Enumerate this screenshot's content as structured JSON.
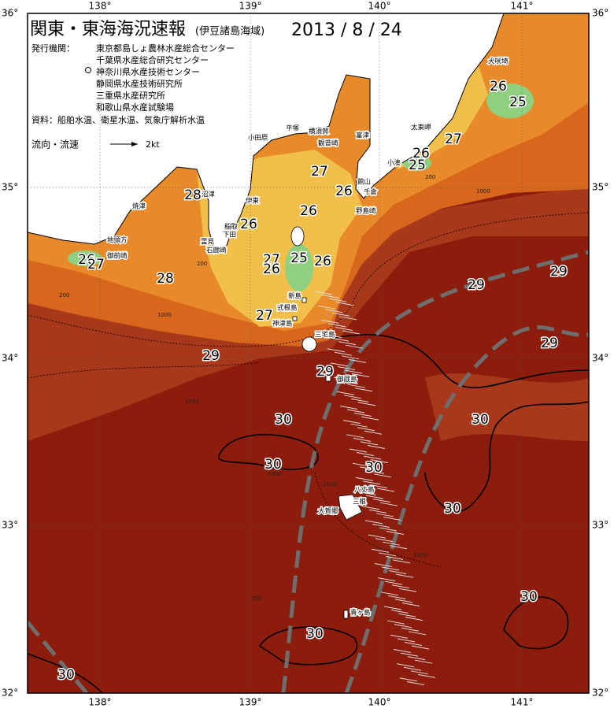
{
  "header": {
    "title": "関東・東海海況速報",
    "region": "(伊豆諸島海域)",
    "date": "2013 / 8 / 24"
  },
  "issuers": {
    "label": "発行機関：",
    "agencies": [
      "東京都島しょ農林水産総合センター",
      "千葉県水産総合研究センター",
      "神奈川県水産技術センター",
      "静岡県水産技術研究所",
      "三重県水産研究所",
      "和歌山県水産試験場"
    ]
  },
  "sources": "資料：船舶水温、衛星水温、気象庁解析水温",
  "legend": {
    "label": "流向・流速",
    "scale": "2kt"
  },
  "axes": {
    "lon": [
      "138°",
      "139°",
      "140°",
      "141°"
    ],
    "lat": [
      "36°",
      "35°",
      "34°",
      "33°",
      "32°"
    ]
  },
  "places": [
    "犬吠埼",
    "太東岬",
    "小湊",
    "館山",
    "千倉",
    "野島崎",
    "富津",
    "観音崎",
    "横須賀",
    "平塚",
    "小田原",
    "伊東",
    "稲取",
    "下田",
    "石廊崎",
    "雲見",
    "沼津",
    "焼津",
    "地頭方",
    "御前崎",
    "新島",
    "式根島",
    "神津島",
    "三宅島",
    "御蔵島",
    "八丈島",
    "三根",
    "大賀郷",
    "青ヶ島"
  ],
  "temperature_labels": [
    "26",
    "25",
    "27",
    "26",
    "25",
    "27",
    "26",
    "26",
    "28",
    "26",
    "26",
    "27",
    "28",
    "27",
    "26",
    "25",
    "26",
    "27",
    "29",
    "29",
    "29",
    "29",
    "29",
    "30",
    "30",
    "30",
    "30",
    "30",
    "30",
    "30",
    "30"
  ],
  "depth_labels": [
    "200",
    "1000",
    "200",
    "1000",
    "200",
    "1000",
    "1000",
    "1000",
    "1000",
    "200"
  ]
}
